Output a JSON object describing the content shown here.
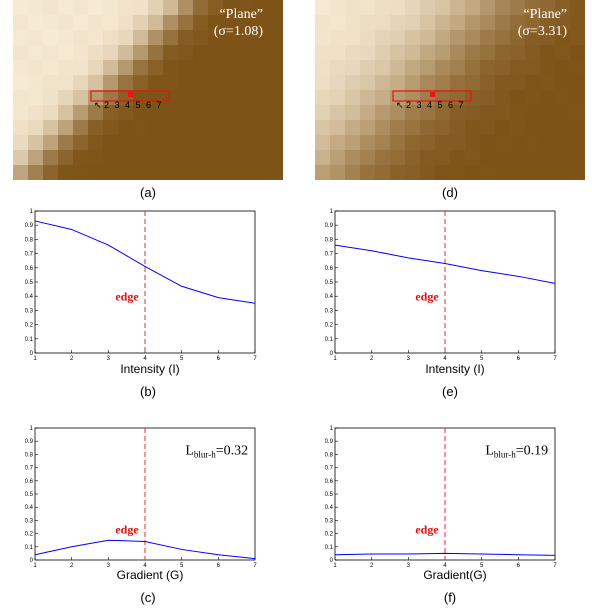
{
  "images": [
    {
      "id": "a",
      "caption": "(a)",
      "title_line1": "“Plane”",
      "title_line2": "(σ=1.08)",
      "box_numbers": [
        "2",
        "3",
        "4",
        "5",
        "6",
        "7"
      ],
      "colors": {
        "light": "#f7ead3",
        "dark": "#7d5317",
        "marker": "#e8140f"
      }
    },
    {
      "id": "d",
      "caption": "(d)",
      "title_line1": "“Plane”",
      "title_line2": "(σ=3.31)",
      "box_numbers": [
        "2",
        "3",
        "4",
        "5",
        "6",
        "7"
      ],
      "colors": {
        "light": "#f7ead3",
        "dark": "#7d5317",
        "marker": "#e8140f"
      }
    }
  ],
  "chart_data": [
    {
      "id": "b",
      "type": "line",
      "caption": "(b)",
      "xlabel": "Intensity (I)",
      "x": [
        1,
        2,
        3,
        4,
        5,
        6,
        7
      ],
      "series": [
        {
          "values": [
            0.93,
            0.87,
            0.76,
            0.61,
            0.47,
            0.39,
            0.35
          ],
          "color": "#0000ff"
        }
      ],
      "xlim": [
        1,
        7
      ],
      "ylim": [
        0,
        1
      ],
      "xticks": [
        "1",
        "2",
        "3",
        "4",
        "5",
        "6",
        "7"
      ],
      "yticks": [
        "0",
        "0.1",
        "0.2",
        "0.3",
        "0.4",
        "0.5",
        "0.6",
        "0.7",
        "0.8",
        "0.9",
        "1"
      ],
      "edge_x": 4,
      "edge_label": "edge",
      "edge_label_y": 0.37,
      "annotation": null,
      "grid": false
    },
    {
      "id": "e",
      "type": "line",
      "caption": "(e)",
      "xlabel": "Intensity (I)",
      "x": [
        1,
        2,
        3,
        4,
        5,
        6,
        7
      ],
      "series": [
        {
          "values": [
            0.76,
            0.72,
            0.67,
            0.63,
            0.58,
            0.54,
            0.49
          ],
          "color": "#0000ff"
        }
      ],
      "xlim": [
        1,
        7
      ],
      "ylim": [
        0,
        1
      ],
      "xticks": [
        "1",
        "2",
        "3",
        "4",
        "5",
        "6",
        "7"
      ],
      "yticks": [
        "0",
        "0.1",
        "0.2",
        "0.3",
        "0.4",
        "0.5",
        "0.6",
        "0.7",
        "0.8",
        "0.9",
        "1"
      ],
      "edge_x": 4,
      "edge_label": "edge",
      "edge_label_y": 0.37,
      "annotation": null,
      "grid": false
    },
    {
      "id": "c",
      "type": "line",
      "caption": "(c)",
      "xlabel": "Gradient (G)",
      "x": [
        1,
        2,
        3,
        4,
        5,
        6,
        7
      ],
      "series": [
        {
          "values": [
            0.04,
            0.1,
            0.15,
            0.14,
            0.08,
            0.04,
            0.01
          ],
          "color": "#0000ff"
        }
      ],
      "xlim": [
        1,
        7
      ],
      "ylim": [
        0,
        1
      ],
      "xticks": [
        "1",
        "2",
        "3",
        "4",
        "5",
        "6",
        "7"
      ],
      "yticks": [
        "0",
        "0.1",
        "0.2",
        "0.3",
        "0.4",
        "0.5",
        "0.6",
        "0.7",
        "0.8",
        "0.9",
        "1"
      ],
      "edge_x": 4,
      "edge_label": "edge",
      "edge_label_y": 0.2,
      "annotation": {
        "main": "L",
        "sub": "blur-h",
        "value": "=0.32",
        "x": 5.1,
        "y": 0.8
      },
      "grid": false
    },
    {
      "id": "f",
      "type": "line",
      "caption": "(f)",
      "xlabel": "Gradient(G)",
      "x": [
        1,
        2,
        3,
        4,
        5,
        6,
        7
      ],
      "series": [
        {
          "values": [
            0.04,
            0.045,
            0.045,
            0.05,
            0.045,
            0.04,
            0.035
          ],
          "color": "#0000ff"
        }
      ],
      "xlim": [
        1,
        7
      ],
      "ylim": [
        0,
        1
      ],
      "xticks": [
        "1",
        "2",
        "3",
        "4",
        "5",
        "6",
        "7"
      ],
      "yticks": [
        "0",
        "0.1",
        "0.2",
        "0.3",
        "0.4",
        "0.5",
        "0.6",
        "0.7",
        "0.8",
        "0.9",
        "1"
      ],
      "edge_x": 4,
      "edge_label": "edge",
      "edge_label_y": 0.2,
      "annotation": {
        "main": "L",
        "sub": "blur-h",
        "value": "=0.19",
        "x": 5.1,
        "y": 0.8
      },
      "grid": false
    }
  ]
}
